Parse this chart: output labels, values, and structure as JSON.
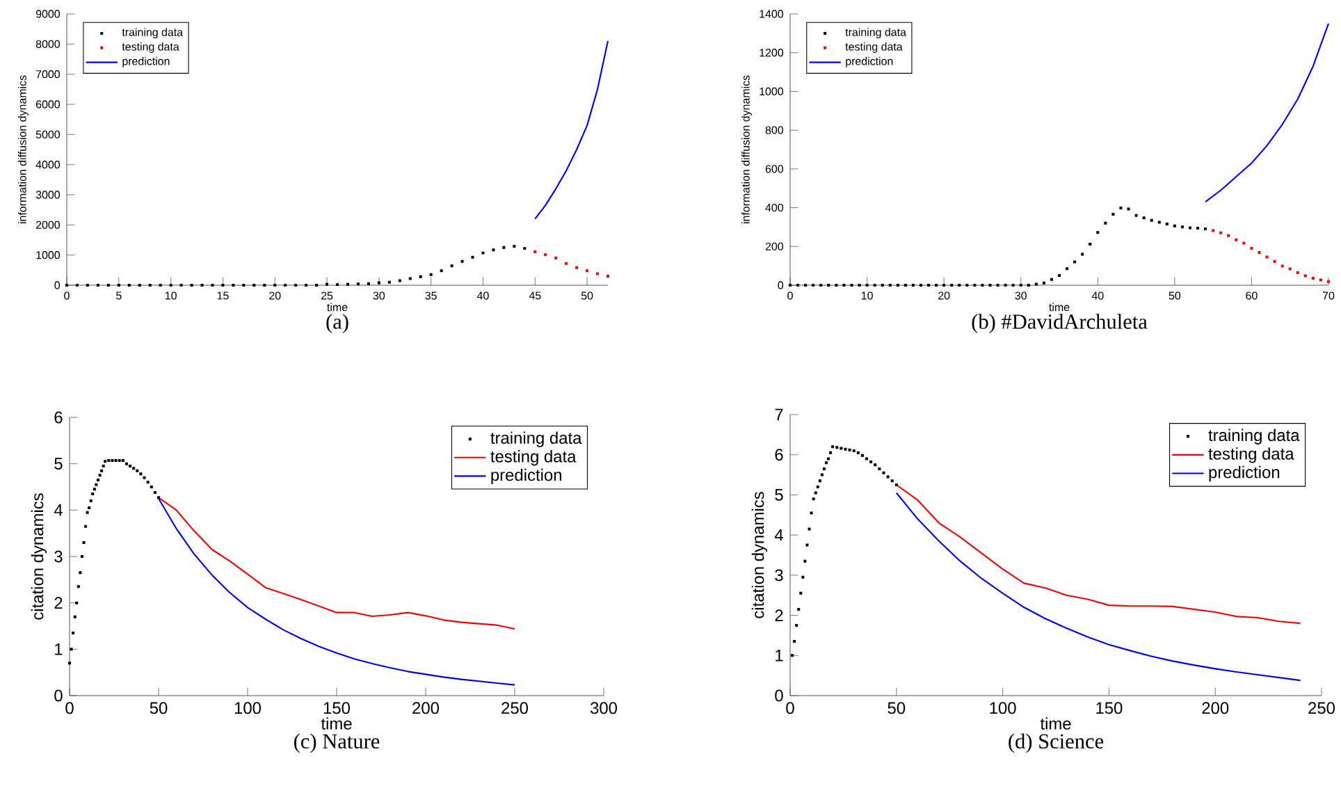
{
  "chart_data": [
    {
      "type": "scatter",
      "title": "(a)",
      "xlabel": "time",
      "ylabel": "information diffusion dynamics",
      "xlim": [
        0,
        52
      ],
      "ylim": [
        0,
        9000
      ],
      "xticks": [
        0,
        5,
        10,
        15,
        20,
        25,
        30,
        35,
        40,
        45,
        50
      ],
      "yticks": [
        0,
        1000,
        2000,
        3000,
        4000,
        5000,
        6000,
        7000,
        8000,
        9000
      ],
      "legend": "top left",
      "series": [
        {
          "name": "training data",
          "marker": "square",
          "color": "#000000",
          "x": [
            0,
            1,
            2,
            3,
            4,
            5,
            6,
            7,
            8,
            9,
            10,
            11,
            12,
            13,
            14,
            15,
            16,
            17,
            18,
            19,
            20,
            21,
            22,
            23,
            24,
            25,
            26,
            27,
            28,
            29,
            30,
            31,
            32,
            33,
            34,
            35,
            36,
            37,
            38,
            39,
            40,
            41,
            42,
            43,
            44
          ],
          "values": [
            0,
            0,
            0,
            0,
            0,
            0,
            0,
            0,
            0,
            0,
            0,
            0,
            0,
            0,
            0,
            0,
            0,
            0,
            0,
            0,
            0,
            0,
            0,
            0,
            0,
            30,
            20,
            30,
            40,
            50,
            80,
            100,
            150,
            220,
            280,
            350,
            480,
            640,
            790,
            930,
            1070,
            1170,
            1250,
            1290,
            1220
          ]
        },
        {
          "name": "testing data",
          "marker": "square",
          "color": "#ff0000",
          "x": [
            45,
            46,
            47,
            48,
            49,
            50,
            51,
            52
          ],
          "values": [
            1110,
            1010,
            900,
            720,
            580,
            480,
            380,
            300
          ]
        },
        {
          "name": "prediction",
          "type": "line",
          "color": "#0000ff",
          "x": [
            45,
            46,
            47,
            48,
            49,
            50,
            51,
            52
          ],
          "values": [
            2200,
            2650,
            3200,
            3800,
            4500,
            5300,
            6500,
            8100
          ]
        }
      ]
    },
    {
      "type": "scatter",
      "title": "(b) #DavidArchuleta",
      "xlabel": "time",
      "ylabel": "information diffusion dynamics",
      "xlim": [
        0,
        70
      ],
      "ylim": [
        0,
        1400
      ],
      "xticks": [
        0,
        10,
        20,
        30,
        40,
        50,
        60,
        70
      ],
      "yticks": [
        0,
        200,
        400,
        600,
        800,
        1000,
        1200,
        1400
      ],
      "legend": "top left",
      "series": [
        {
          "name": "training data",
          "marker": "square",
          "color": "#000000",
          "x": [
            0,
            1,
            2,
            3,
            4,
            5,
            6,
            7,
            8,
            9,
            10,
            11,
            12,
            13,
            14,
            15,
            16,
            17,
            18,
            19,
            20,
            21,
            22,
            23,
            24,
            25,
            26,
            27,
            28,
            29,
            30,
            31,
            32,
            33,
            34,
            35,
            36,
            37,
            38,
            39,
            40,
            41,
            42,
            43,
            44,
            45,
            46,
            47,
            48,
            49,
            50,
            51,
            52,
            53,
            54
          ],
          "values": [
            0,
            0,
            0,
            0,
            0,
            0,
            0,
            0,
            0,
            0,
            0,
            0,
            0,
            0,
            0,
            0,
            0,
            0,
            0,
            0,
            0,
            0,
            0,
            0,
            0,
            0,
            0,
            0,
            0,
            0,
            0,
            0,
            5,
            12,
            30,
            50,
            85,
            120,
            160,
            212,
            272,
            320,
            366,
            398,
            393,
            360,
            347,
            335,
            325,
            316,
            306,
            301,
            296,
            294,
            291
          ]
        },
        {
          "name": "testing data",
          "marker": "square",
          "color": "#ff0000",
          "x": [
            55,
            56,
            57,
            58,
            59,
            60,
            61,
            62,
            63,
            64,
            65,
            66,
            67,
            68,
            69,
            70
          ],
          "values": [
            282,
            270,
            256,
            234,
            217,
            190,
            169,
            145,
            123,
            99,
            84,
            65,
            48,
            36,
            27,
            19
          ]
        },
        {
          "name": "prediction",
          "type": "line",
          "color": "#0000ff",
          "x": [
            54,
            56,
            58,
            60,
            62,
            64,
            66,
            68,
            70
          ],
          "values": [
            430,
            490,
            560,
            630,
            720,
            830,
            960,
            1130,
            1350
          ]
        }
      ]
    },
    {
      "type": "scatter",
      "title": "(c) Nature",
      "xlabel": "time",
      "ylabel": "citation dynamics",
      "xlim": [
        0,
        300
      ],
      "ylim": [
        0,
        6
      ],
      "xticks": [
        0,
        50,
        100,
        150,
        200,
        250,
        300
      ],
      "yticks": [
        0,
        1,
        2,
        3,
        4,
        5,
        6
      ],
      "legend": "top right",
      "series": [
        {
          "name": "training data",
          "marker": "square",
          "color": "#000000",
          "x": [
            0,
            1,
            2,
            3,
            4,
            5,
            6,
            7,
            8,
            9,
            10,
            11,
            12,
            13,
            14,
            15,
            16,
            17,
            18,
            19,
            20,
            22,
            24,
            26,
            28,
            30,
            32,
            34,
            36,
            38,
            40,
            42,
            44,
            46,
            48,
            50
          ],
          "values": [
            0.7,
            1.0,
            1.35,
            1.7,
            2.0,
            2.35,
            2.65,
            3.0,
            3.3,
            3.65,
            3.95,
            4.05,
            4.2,
            4.35,
            4.45,
            4.55,
            4.65,
            4.75,
            4.85,
            4.95,
            5.05,
            5.07,
            5.07,
            5.07,
            5.07,
            5.07,
            5.0,
            4.95,
            4.9,
            4.85,
            4.78,
            4.7,
            4.6,
            4.5,
            4.38,
            4.27
          ]
        },
        {
          "name": "testing data",
          "type": "line",
          "color": "#ff0000",
          "x": [
            50,
            60,
            70,
            80,
            90,
            100,
            110,
            120,
            130,
            140,
            150,
            160,
            170,
            180,
            190,
            200,
            210,
            220,
            230,
            240,
            250
          ],
          "values": [
            4.27,
            4.0,
            3.55,
            3.15,
            2.9,
            2.62,
            2.33,
            2.2,
            2.07,
            1.93,
            1.79,
            1.79,
            1.71,
            1.74,
            1.79,
            1.72,
            1.63,
            1.58,
            1.55,
            1.52,
            1.44
          ]
        },
        {
          "name": "prediction",
          "type": "line",
          "color": "#0000ff",
          "x": [
            50,
            60,
            70,
            80,
            90,
            100,
            110,
            120,
            130,
            140,
            150,
            160,
            170,
            180,
            190,
            200,
            210,
            220,
            230,
            240,
            250
          ],
          "values": [
            4.25,
            3.6,
            3.05,
            2.6,
            2.22,
            1.9,
            1.65,
            1.42,
            1.23,
            1.06,
            0.92,
            0.79,
            0.69,
            0.6,
            0.52,
            0.46,
            0.4,
            0.35,
            0.31,
            0.27,
            0.23
          ]
        }
      ]
    },
    {
      "type": "scatter",
      "title": "(d) Science",
      "xlabel": "time",
      "ylabel": "citation dynamics",
      "xlim": [
        0,
        250
      ],
      "ylim": [
        0,
        7
      ],
      "xticks": [
        0,
        50,
        100,
        150,
        200,
        250
      ],
      "yticks": [
        0,
        1,
        2,
        3,
        4,
        5,
        6,
        7
      ],
      "legend": "top right",
      "series": [
        {
          "name": "training data",
          "marker": "square",
          "color": "#000000",
          "x": [
            1,
            2,
            3,
            4,
            5,
            6,
            7,
            8,
            9,
            10,
            11,
            12,
            13,
            14,
            15,
            16,
            17,
            18,
            19,
            20,
            22,
            24,
            26,
            28,
            30,
            32,
            34,
            36,
            38,
            40,
            42,
            44,
            46,
            48,
            50
          ],
          "values": [
            1.0,
            1.35,
            1.75,
            2.15,
            2.55,
            2.95,
            3.35,
            3.75,
            4.15,
            4.55,
            4.9,
            5.05,
            5.2,
            5.35,
            5.5,
            5.65,
            5.8,
            5.9,
            6.05,
            6.2,
            6.18,
            6.16,
            6.14,
            6.12,
            6.1,
            6.05,
            5.98,
            5.9,
            5.82,
            5.75,
            5.65,
            5.55,
            5.45,
            5.35,
            5.25
          ]
        },
        {
          "name": "testing data",
          "type": "line",
          "color": "#ff0000",
          "x": [
            50,
            60,
            70,
            80,
            90,
            100,
            110,
            120,
            130,
            140,
            150,
            160,
            170,
            180,
            190,
            200,
            210,
            220,
            230,
            240
          ],
          "values": [
            5.25,
            4.87,
            4.3,
            3.95,
            3.55,
            3.15,
            2.8,
            2.68,
            2.5,
            2.4,
            2.25,
            2.23,
            2.23,
            2.22,
            2.15,
            2.08,
            1.97,
            1.94,
            1.85,
            1.8
          ]
        },
        {
          "name": "prediction",
          "type": "line",
          "color": "#0000ff",
          "x": [
            50,
            60,
            70,
            80,
            90,
            100,
            110,
            120,
            130,
            140,
            150,
            160,
            170,
            180,
            190,
            200,
            210,
            220,
            230,
            240
          ],
          "values": [
            5.05,
            4.4,
            3.85,
            3.35,
            2.92,
            2.55,
            2.2,
            1.92,
            1.68,
            1.46,
            1.27,
            1.12,
            0.98,
            0.86,
            0.76,
            0.67,
            0.59,
            0.52,
            0.45,
            0.38
          ]
        }
      ]
    }
  ]
}
